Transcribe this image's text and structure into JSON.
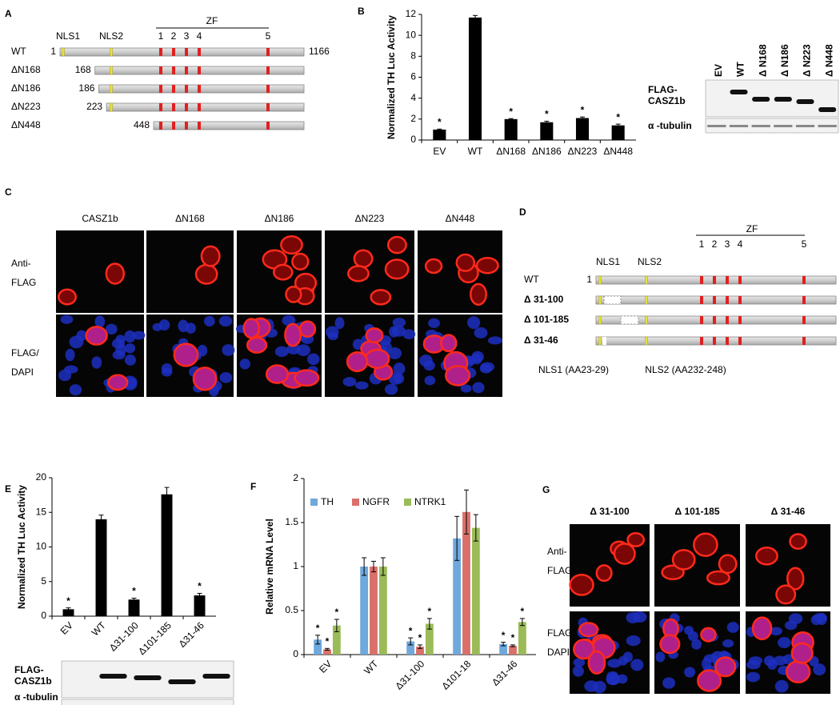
{
  "panel_labels": [
    "A",
    "B",
    "C",
    "D",
    "E",
    "F",
    "G"
  ],
  "construct_map_a": {
    "nls_labels": [
      "NLS1",
      "NLS2"
    ],
    "domain_label": "ZF",
    "zf_numbers": [
      1,
      2,
      3,
      4,
      5
    ],
    "length": 1166,
    "rows": [
      {
        "label": "WT",
        "start": 1
      },
      {
        "label": "ΔN168",
        "start": 168
      },
      {
        "label": "ΔN186",
        "start": 186
      },
      {
        "label": "ΔN223",
        "start": 223
      },
      {
        "label": "ΔN448",
        "start": 448
      }
    ]
  },
  "blot_b": {
    "lanes": [
      "EV",
      "WT",
      "Δ N168",
      "Δ N186",
      "Δ N223",
      "Δ N448"
    ],
    "rows": [
      [
        "FLAG-",
        "CASZ1b"
      ],
      [
        "α -tubulin"
      ]
    ]
  },
  "images_c": {
    "columns": [
      "CASZ1b",
      "ΔN168",
      "ΔN186",
      "ΔN223",
      "ΔN448"
    ],
    "rows": [
      [
        "Anti-",
        "FLAG"
      ],
      [
        "FLAG/",
        "DAPI"
      ]
    ]
  },
  "construct_map_d": {
    "nls_labels": [
      "NLS1",
      "NLS2"
    ],
    "domain_label": "ZF",
    "zf_numbers": [
      1,
      2,
      3,
      4,
      5
    ],
    "start": 1,
    "rows": [
      "WT",
      "Δ 31-100",
      "Δ 101-185",
      "Δ 31-46"
    ],
    "notes": [
      "NLS1 (AA23-29)",
      "NLS2 (AA232-248)"
    ]
  },
  "blot_e": {
    "rows": [
      [
        "FLAG-",
        "CASZ1b"
      ],
      [
        "α -tubulin"
      ]
    ]
  },
  "images_g": {
    "columns": [
      "Δ 31-100",
      "Δ 101-185",
      "Δ 31-46"
    ],
    "rows": [
      [
        "Anti-",
        "FLAG"
      ],
      [
        "FLAG/",
        "DAPI"
      ]
    ]
  },
  "chart_data": [
    {
      "type": "bar",
      "ylabel": "Normalized TH Luc Activity",
      "categories": [
        "EV",
        "WT",
        "ΔN168",
        "ΔN186",
        "ΔN223",
        "ΔN448"
      ],
      "values": [
        1.0,
        11.7,
        2.0,
        1.7,
        2.1,
        1.4
      ],
      "errors": [
        0.05,
        0.2,
        0.05,
        0.1,
        0.1,
        0.12
      ],
      "annotations": [
        "*",
        null,
        "*",
        "*",
        "*",
        "*"
      ],
      "color": "#000000",
      "ylim": [
        0,
        12
      ],
      "yticks": [
        0,
        2,
        4,
        6,
        8,
        10,
        12
      ]
    },
    {
      "type": "bar",
      "ylabel": "Normalized TH Luc Activity",
      "categories": [
        "EV",
        "WT",
        "Δ31-100",
        "Δ101-185",
        "Δ31-46"
      ],
      "values": [
        1.0,
        14.0,
        2.4,
        17.6,
        3.0
      ],
      "errors": [
        0.2,
        0.6,
        0.2,
        1.0,
        0.3
      ],
      "annotations": [
        "*",
        null,
        "*",
        null,
        "*"
      ],
      "color": "#000000",
      "ylim": [
        0,
        20
      ],
      "yticks": [
        0,
        5,
        10,
        15,
        20
      ]
    },
    {
      "type": "bar",
      "ylabel": "Relative mRNA Level",
      "categories": [
        "EV",
        "WT",
        "Δ31-100",
        "Δ101-18",
        "Δ31-46"
      ],
      "series": [
        {
          "name": "TH",
          "color": "#6fa8dc",
          "values": [
            0.17,
            1.0,
            0.15,
            1.32,
            0.12
          ],
          "errors": [
            0.05,
            0.1,
            0.04,
            0.25,
            0.02
          ],
          "annotations": [
            "*",
            null,
            "*",
            null,
            "*"
          ]
        },
        {
          "name": "NGFR",
          "color": "#d9706a",
          "values": [
            0.06,
            1.0,
            0.09,
            1.62,
            0.1
          ],
          "errors": [
            0.01,
            0.06,
            0.02,
            0.25,
            0.01
          ],
          "annotations": [
            "*",
            null,
            "*",
            null,
            "*"
          ]
        },
        {
          "name": "NTRK1",
          "color": "#9bbb59",
          "values": [
            0.33,
            1.0,
            0.35,
            1.44,
            0.37
          ],
          "errors": [
            0.07,
            0.1,
            0.06,
            0.15,
            0.04
          ],
          "annotations": [
            "*",
            null,
            "*",
            null,
            "*"
          ]
        }
      ],
      "legend": "top",
      "ylim": [
        0,
        2
      ],
      "yticks": [
        0,
        0.5,
        1,
        1.5,
        2
      ]
    }
  ]
}
